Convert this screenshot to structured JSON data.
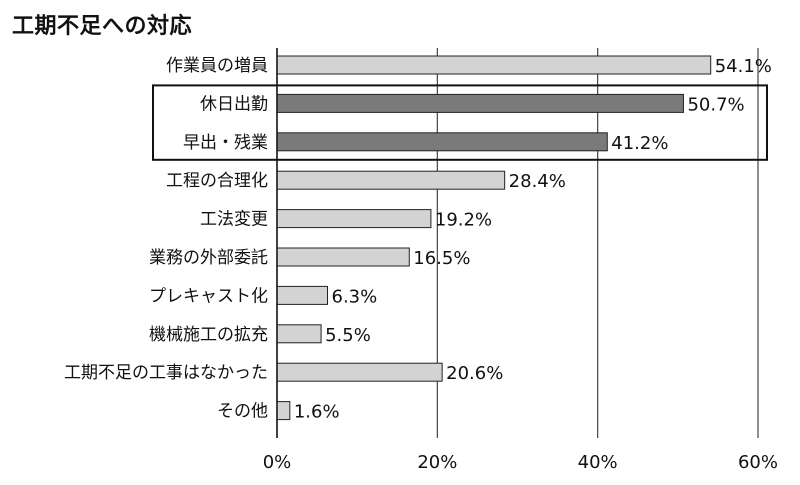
{
  "chart_data": {
    "type": "bar",
    "orientation": "horizontal",
    "title": "工期不足への対応",
    "categories": [
      "作業員の増員",
      "休日出勤",
      "早出・残業",
      "工程の合理化",
      "工法変更",
      "業務の外部委託",
      "プレキャスト化",
      "機械施工の拡充",
      "工期不足の工事はなかった",
      "その他"
    ],
    "values": [
      54.1,
      50.7,
      41.2,
      28.4,
      19.2,
      16.5,
      6.3,
      5.5,
      20.6,
      1.6
    ],
    "value_labels": [
      "54.1%",
      "50.7%",
      "41.2%",
      "28.4%",
      "19.2%",
      "16.5%",
      "6.3%",
      "5.5%",
      "20.6%",
      "1.6%"
    ],
    "highlighted": [
      false,
      true,
      true,
      false,
      false,
      false,
      false,
      false,
      false,
      false
    ],
    "xlim": [
      0,
      60
    ],
    "xticks": [
      0,
      20,
      40,
      60
    ],
    "xtick_labels": [
      "0%",
      "20%",
      "40%",
      "60%"
    ],
    "grid": "vertical",
    "colors": {
      "bar": "#d3d3d3",
      "bar_highlight": "#7a7a7a",
      "outline": "#222222",
      "grid": "#444444"
    }
  }
}
